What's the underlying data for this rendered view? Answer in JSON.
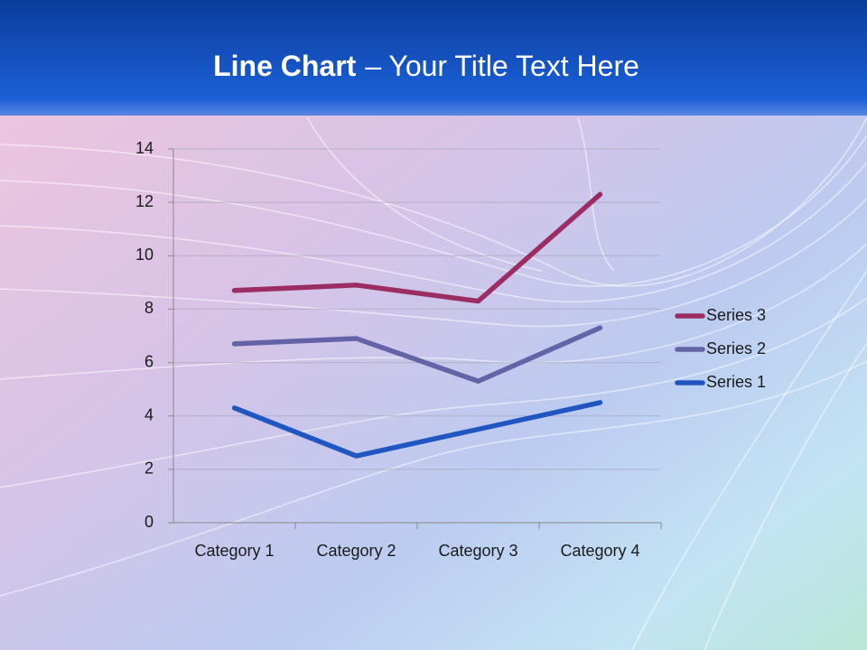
{
  "chart_data": {
    "type": "line",
    "title": {
      "bold": "Line Chart",
      "rest": "– Your Title Text Here"
    },
    "categories": [
      "Category 1",
      "Category 2",
      "Category 3",
      "Category 4"
    ],
    "series": [
      {
        "name": "Series 1",
        "color": "#1f56c2",
        "values": [
          4.3,
          2.5,
          3.5,
          4.5
        ]
      },
      {
        "name": "Series 2",
        "color": "#6264a7",
        "values": [
          6.7,
          6.9,
          5.3,
          7.3
        ]
      },
      {
        "name": "Series 3",
        "color": "#9b2d62",
        "values": [
          8.7,
          8.9,
          8.3,
          12.3
        ]
      }
    ],
    "ylim": [
      0,
      14
    ],
    "yticks": [
      0,
      2,
      4,
      6,
      8,
      10,
      12,
      14
    ],
    "grid": true,
    "legend": "right"
  }
}
